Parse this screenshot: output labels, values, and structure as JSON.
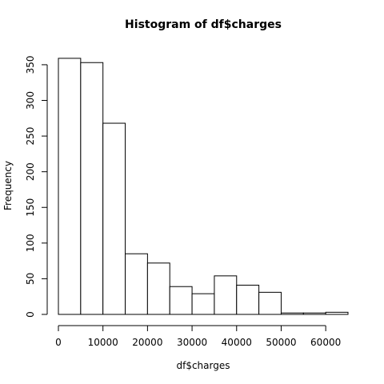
{
  "chart_data": {
    "type": "bar",
    "title": "Histogram of df$charges",
    "xlabel": "df$charges",
    "ylabel": "Frequency",
    "bins": [
      [
        0,
        5000
      ],
      [
        5000,
        10000
      ],
      [
        10000,
        15000
      ],
      [
        15000,
        20000
      ],
      [
        20000,
        25000
      ],
      [
        25000,
        30000
      ],
      [
        30000,
        35000
      ],
      [
        35000,
        40000
      ],
      [
        40000,
        45000
      ],
      [
        45000,
        50000
      ],
      [
        50000,
        55000
      ],
      [
        55000,
        60000
      ],
      [
        60000,
        65000
      ]
    ],
    "values": [
      359,
      353,
      268,
      85,
      72,
      39,
      29,
      54,
      41,
      31,
      2,
      2,
      3
    ],
    "xlim": [
      0,
      65000
    ],
    "ylim": [
      0,
      360
    ],
    "x_ticks": [
      0,
      10000,
      20000,
      30000,
      40000,
      50000,
      60000
    ],
    "x_tick_labels": [
      "0",
      "10000",
      "20000",
      "30000",
      "40000",
      "50000",
      "60000"
    ],
    "y_ticks": [
      0,
      50,
      100,
      150,
      200,
      250,
      300,
      350
    ],
    "y_tick_labels": [
      "0",
      "50",
      "100",
      "150",
      "200",
      "250",
      "300",
      "350"
    ],
    "grid": false
  }
}
